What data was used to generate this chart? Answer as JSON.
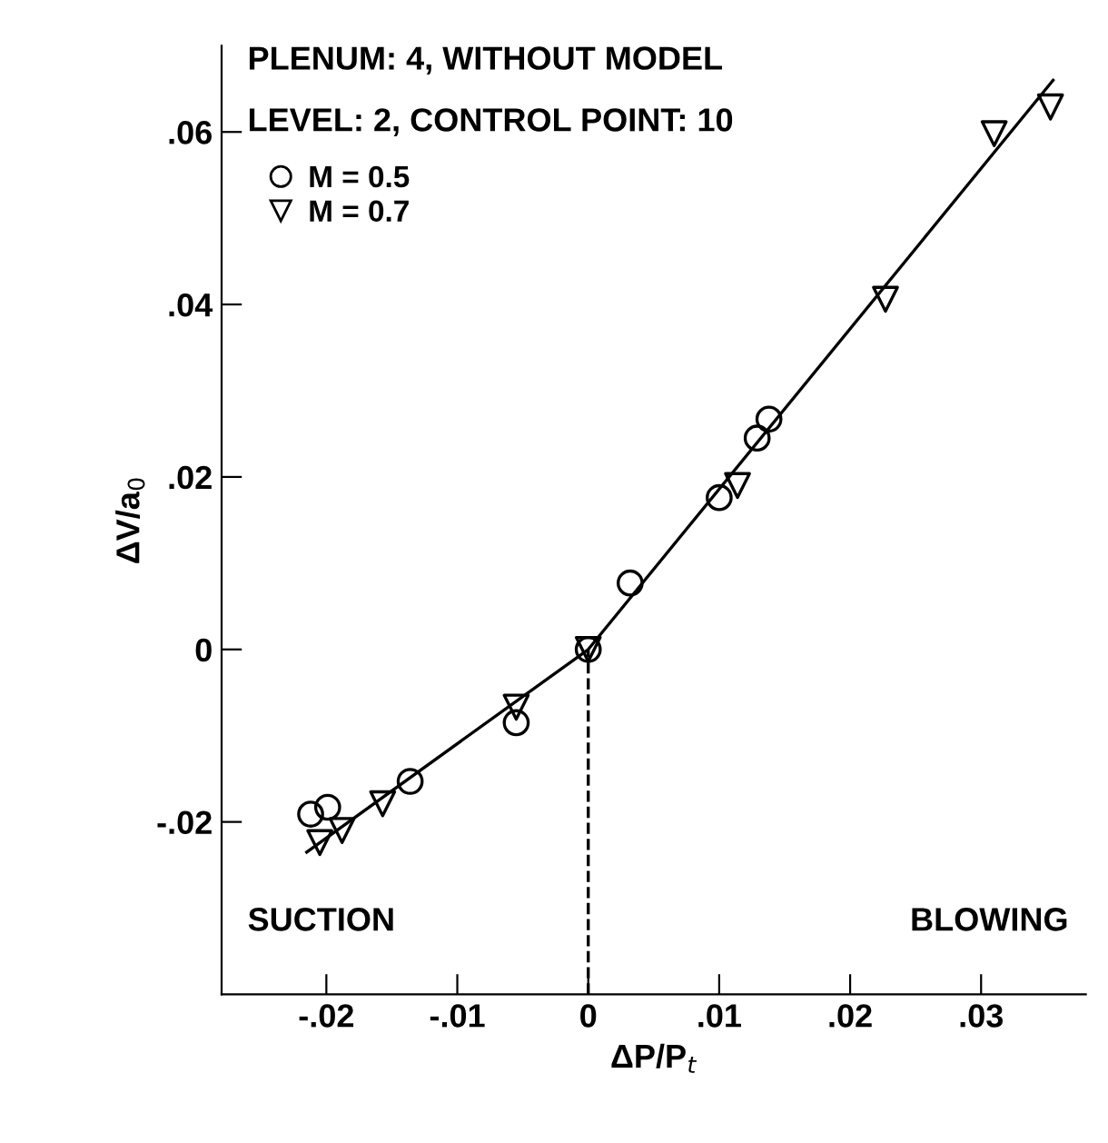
{
  "chart_data": {
    "type": "scatter",
    "xlabel": "ΔP/P$_{t}$",
    "ylabel": "ΔV/a$_{0}$",
    "annotations": [
      "PLENUM: 4, WITHOUT MODEL",
      "LEVEL: 2, CONTROL POINT: 10",
      "SUCTION",
      "BLOWING"
    ],
    "xlim": [
      -0.028,
      0.038
    ],
    "ylim": [
      -0.04,
      0.07
    ],
    "xticks": [
      {
        "value": -0.02,
        "label": "-.02"
      },
      {
        "value": -0.01,
        "label": "-.01"
      },
      0,
      {
        "value": 0.01,
        "label": ".01"
      },
      {
        "value": 0.02,
        "label": ".02"
      },
      {
        "value": 0.03,
        "label": ".03"
      }
    ],
    "yticks": [
      {
        "value": -0.02,
        "label": "-.02"
      },
      0,
      {
        "value": 0.02,
        "label": ".02"
      },
      {
        "value": 0.04,
        "label": ".04"
      },
      {
        "value": 0.06,
        "label": ".06"
      }
    ],
    "grid": false,
    "legend": "top left",
    "series": [
      {
        "name": "M = 0.5",
        "marker": "circle",
        "color": "#000000",
        "x": [
          -0.0212,
          -0.0199,
          -0.0136,
          -0.0055,
          0,
          0.0032,
          0.01,
          0.0129,
          0.0138
        ],
        "values": [
          -0.0191,
          -0.0183,
          -0.0153,
          -0.0085,
          0,
          0.0077,
          0.0176,
          0.0245,
          0.0267
        ]
      },
      {
        "name": "M = 0.7",
        "marker": "triangle",
        "color": "#000000",
        "x": [
          -0.0205,
          -0.0188,
          -0.0157,
          -0.0055,
          0,
          0.0114,
          0.0227,
          0.031,
          0.0353
        ],
        "values": [
          -0.0224,
          -0.021,
          -0.0179,
          -0.0067,
          0,
          0.019,
          0.0406,
          0.0598,
          0.0629
        ]
      },
      {
        "type": "line",
        "marker": "none",
        "line_style": "solid",
        "color": "#000000",
        "x": [
          -0.0215,
          0,
          0.0355
        ],
        "values": [
          -0.0235,
          0,
          0.066
        ]
      },
      {
        "type": "line",
        "marker": "none",
        "line_style": "dashed",
        "color": "#000000",
        "x": [
          0,
          0
        ],
        "values": [
          -0.04,
          0
        ]
      }
    ]
  }
}
